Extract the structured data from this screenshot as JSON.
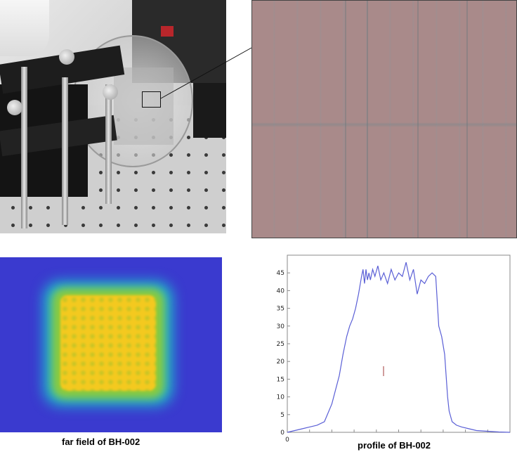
{
  "captions": {
    "far_field": "far field of BH-002",
    "profile": "profile of BH-002"
  },
  "images": {
    "setup_photo": "optics-setup-photo",
    "microscope": "microscope-surface-image",
    "far_field_map": "far-field-heatmap"
  },
  "colors": {
    "heatmap_background": "#3a3acf",
    "heatmap_core": "#f4c91f",
    "profile_line": "#5a5fd6",
    "microscope_tint": "#a98a8a"
  },
  "chart_data": {
    "type": "line",
    "title": "",
    "xlabel": "",
    "ylabel": "",
    "ylim": [
      0,
      50
    ],
    "xlim": [
      0,
      300
    ],
    "y_ticks": [
      "0",
      "5",
      "10",
      "15",
      "20",
      "25",
      "30",
      "35",
      "40",
      "45"
    ],
    "x_ticks": [
      "0"
    ],
    "grid": false,
    "series": [
      {
        "values_x": [
          0,
          10,
          20,
          30,
          40,
          50,
          60,
          70,
          75,
          80,
          84,
          88,
          92,
          96,
          100,
          102,
          104,
          106,
          108,
          110,
          112,
          115,
          118,
          122,
          126,
          130,
          135,
          140,
          145,
          150,
          155,
          160,
          165,
          170,
          175,
          180,
          185,
          190,
          195,
          200,
          204,
          208,
          212,
          214,
          216,
          218,
          222,
          228,
          235,
          245,
          255,
          270,
          285,
          300
        ],
        "values_y": [
          0,
          0.5,
          1,
          1.5,
          2,
          3,
          8,
          16,
          22,
          27,
          30,
          32,
          35,
          39,
          44,
          46,
          42,
          46,
          43,
          45,
          43,
          46,
          44,
          47,
          43,
          45,
          42,
          46,
          43,
          45,
          44,
          48,
          43,
          46,
          39,
          43,
          42,
          44,
          45,
          44,
          30,
          27,
          22,
          16,
          10,
          6,
          3,
          2,
          1.5,
          1,
          0.5,
          0.3,
          0.1,
          0
        ]
      }
    ]
  }
}
